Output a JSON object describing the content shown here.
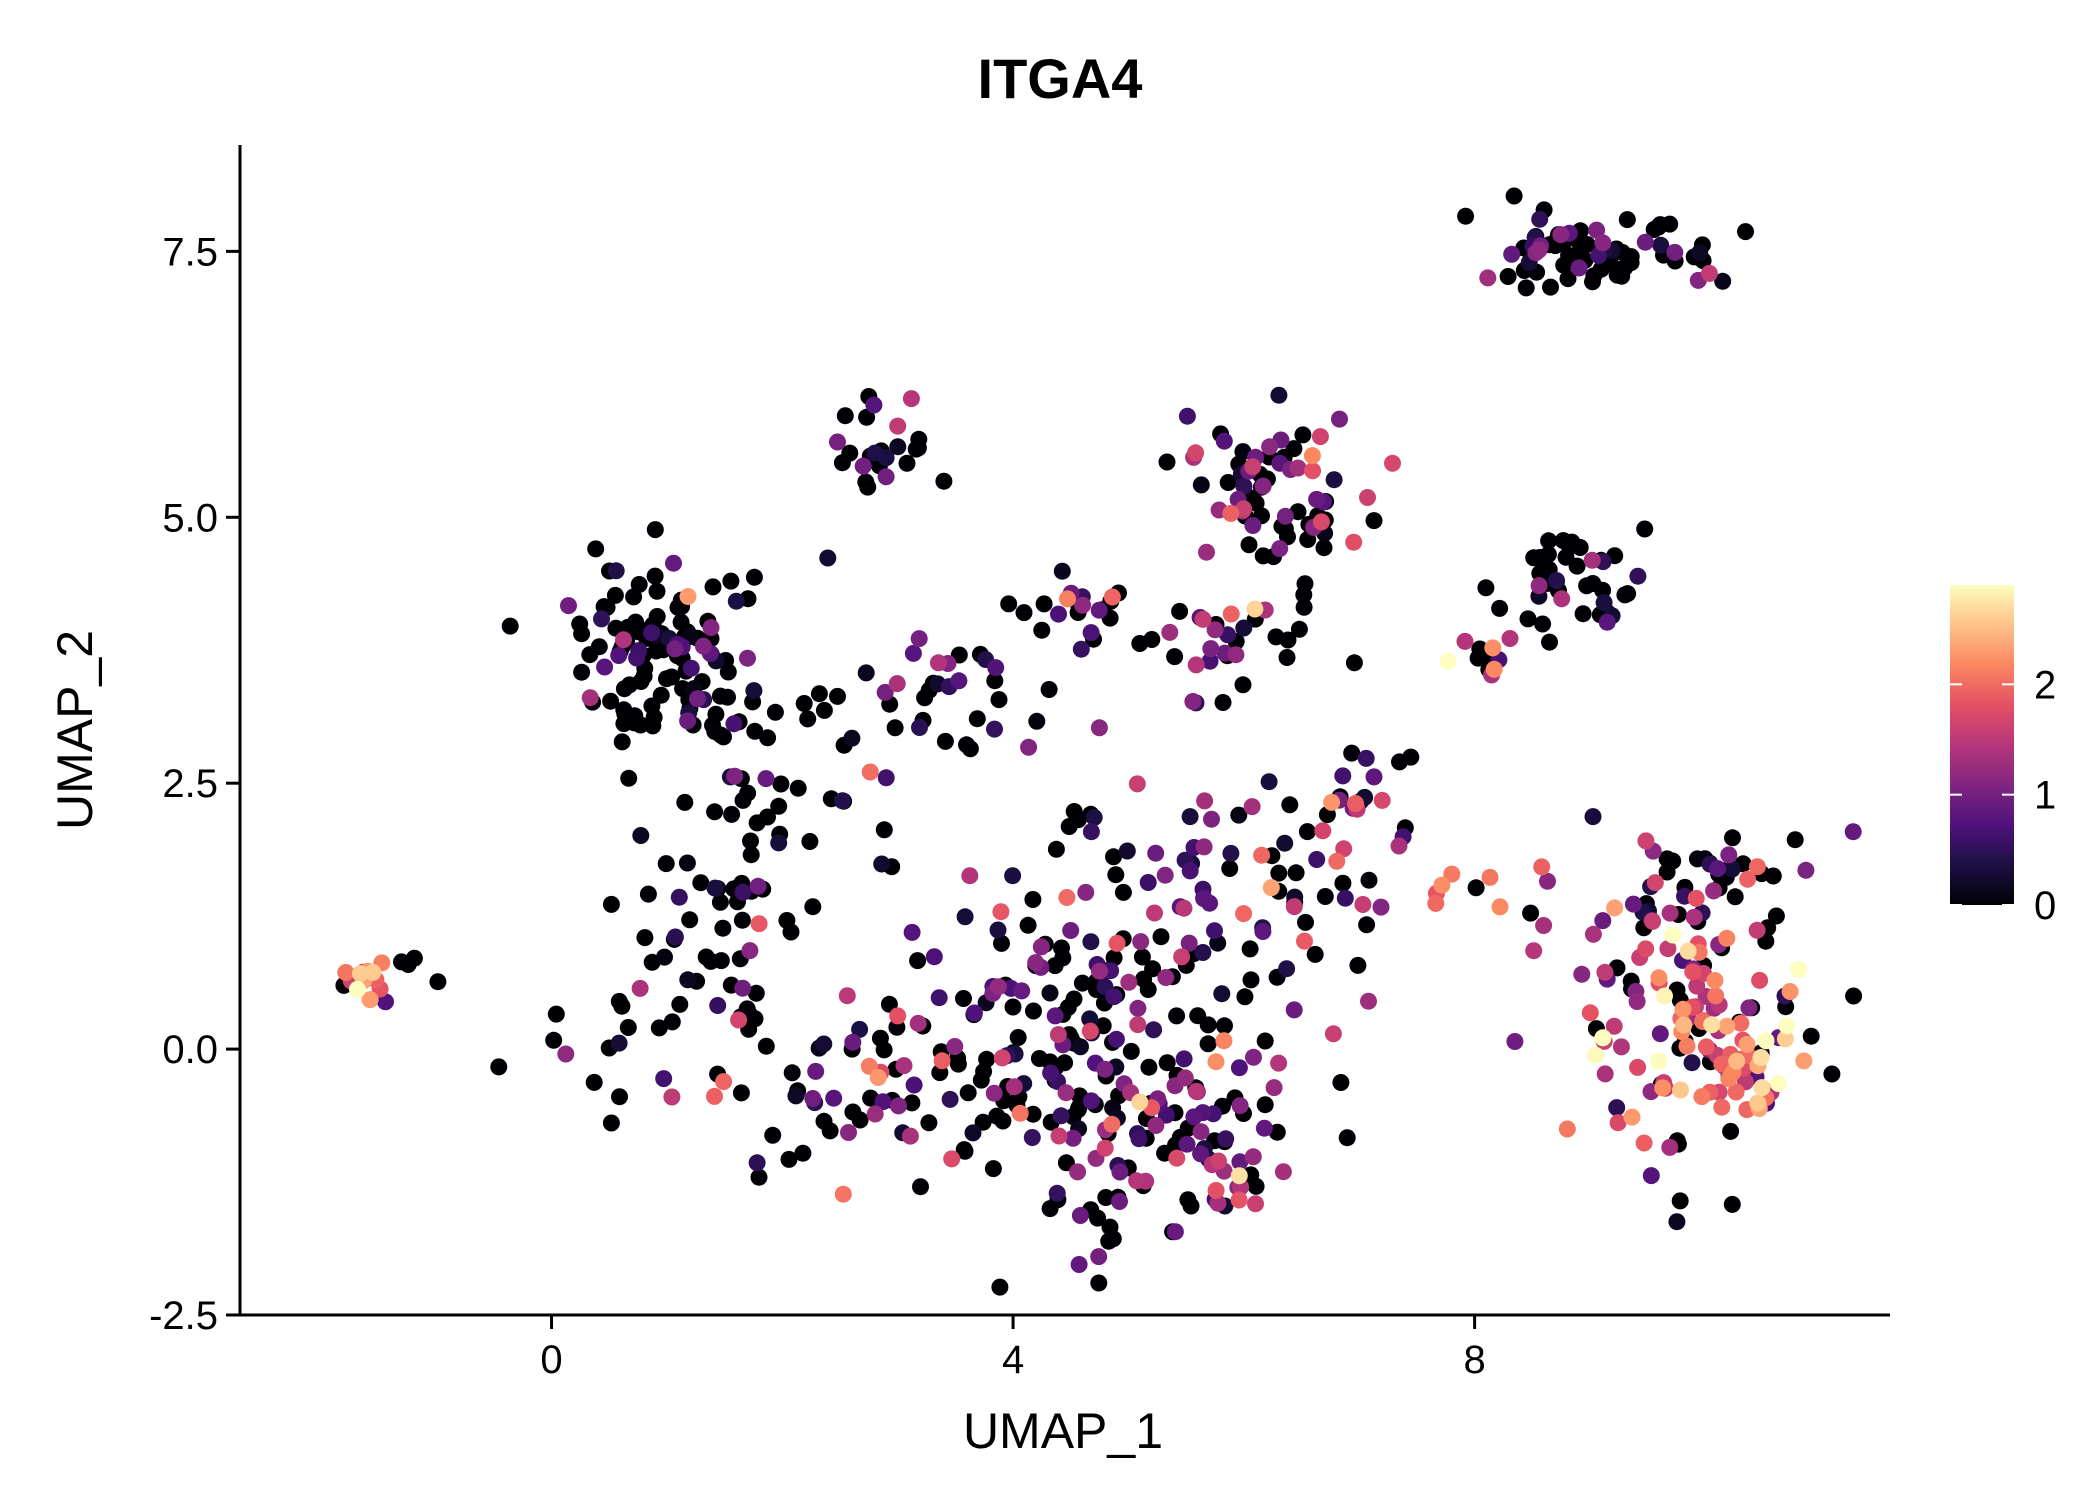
{
  "chart_data": {
    "type": "scatter",
    "title": "ITGA4",
    "xlabel": "UMAP_1",
    "ylabel": "UMAP_2",
    "xlim": [
      -2.7,
      11.6
    ],
    "ylim": [
      -2.5,
      8.5
    ],
    "xticks": [
      0,
      4,
      8
    ],
    "yticks": [
      -2.5,
      0.0,
      2.5,
      5.0,
      7.5
    ],
    "xtick_labels": [
      "0",
      "4",
      "8"
    ],
    "ytick_labels": [
      "-2.5",
      "0.0",
      "2.5",
      "5.0",
      "7.5"
    ],
    "grid": false,
    "colorscale": {
      "name": "magma",
      "range": [
        0,
        2.9
      ],
      "ticks": [
        0,
        1,
        2
      ],
      "tick_labels": [
        "0",
        "1",
        "2"
      ],
      "stops": [
        "#000004",
        "#1c1044",
        "#4f127b",
        "#812581",
        "#b5367a",
        "#e55064",
        "#fb8761",
        "#fec287",
        "#fcfdbf"
      ]
    },
    "clusters": [
      {
        "cx": 0.9,
        "cy": 3.8,
        "rx": 0.6,
        "ry": 0.7,
        "n": 110,
        "mean": 0.05
      },
      {
        "cx": 1.7,
        "cy": 2.4,
        "rx": 0.8,
        "ry": 1.2,
        "n": 55,
        "mean": 0.2
      },
      {
        "cx": 2.9,
        "cy": 5.7,
        "rx": 0.4,
        "ry": 0.35,
        "n": 25,
        "mean": 0.4
      },
      {
        "cx": 3.2,
        "cy": 3.3,
        "rx": 1.0,
        "ry": 0.8,
        "n": 40,
        "mean": 0.55
      },
      {
        "cx": 4.6,
        "cy": 4.1,
        "rx": 0.6,
        "ry": 0.25,
        "n": 22,
        "mean": 0.7
      },
      {
        "cx": 6.2,
        "cy": 5.3,
        "rx": 0.8,
        "ry": 0.6,
        "n": 70,
        "mean": 0.9
      },
      {
        "cx": 5.9,
        "cy": 3.9,
        "rx": 0.6,
        "ry": 0.5,
        "n": 30,
        "mean": 0.8
      },
      {
        "cx": 9.0,
        "cy": 7.5,
        "rx": 0.9,
        "ry": 0.3,
        "n": 75,
        "mean": 0.2
      },
      {
        "cx": 8.9,
        "cy": 4.4,
        "rx": 0.5,
        "ry": 0.4,
        "n": 40,
        "mean": 0.3
      },
      {
        "cx": 8.1,
        "cy": 3.8,
        "rx": 0.3,
        "ry": 0.25,
        "n": 12,
        "mean": 1.8
      },
      {
        "cx": -1.6,
        "cy": 0.65,
        "rx": 0.25,
        "ry": 0.15,
        "n": 14,
        "mean": 2.1
      },
      {
        "cx": -1.1,
        "cy": 0.75,
        "rx": 0.25,
        "ry": 0.1,
        "n": 4,
        "mean": 0.1
      },
      {
        "cx": 1.4,
        "cy": 0.6,
        "rx": 1.0,
        "ry": 1.0,
        "n": 55,
        "mean": 0.3
      },
      {
        "cx": 2.6,
        "cy": -0.5,
        "rx": 1.0,
        "ry": 0.7,
        "n": 45,
        "mean": 0.8
      },
      {
        "cx": 4.2,
        "cy": 0.2,
        "rx": 1.2,
        "ry": 1.3,
        "n": 130,
        "mean": 0.6
      },
      {
        "cx": 5.3,
        "cy": -0.9,
        "rx": 1.1,
        "ry": 0.9,
        "n": 110,
        "mean": 0.9
      },
      {
        "cx": 5.8,
        "cy": 1.2,
        "rx": 1.2,
        "ry": 1.1,
        "n": 90,
        "mean": 0.9
      },
      {
        "cx": 7.0,
        "cy": 2.3,
        "rx": 0.5,
        "ry": 0.6,
        "n": 25,
        "mean": 1.2
      },
      {
        "cx": 7.9,
        "cy": 1.4,
        "rx": 0.5,
        "ry": 0.3,
        "n": 8,
        "mean": 1.9
      },
      {
        "cx": 9.8,
        "cy": 0.4,
        "rx": 0.9,
        "ry": 1.2,
        "n": 140,
        "mean": 1.6
      },
      {
        "cx": 10.4,
        "cy": -0.2,
        "rx": 0.4,
        "ry": 0.4,
        "n": 30,
        "mean": 2.0
      },
      {
        "cx": 10.0,
        "cy": 1.7,
        "rx": 0.5,
        "ry": 0.3,
        "n": 22,
        "mean": 0.4
      }
    ]
  }
}
